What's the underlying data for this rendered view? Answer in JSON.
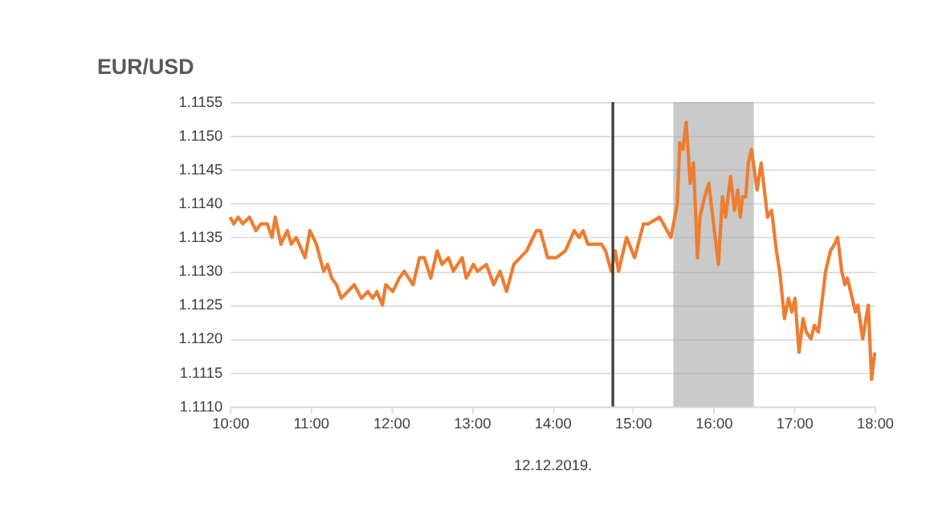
{
  "chart_data": {
    "type": "line",
    "title": "EUR/USD",
    "xlabel": "12.12.2019.",
    "x": [
      10.0,
      10.044,
      10.1,
      10.156,
      10.24,
      10.32,
      10.38,
      10.46,
      10.52,
      10.56,
      10.63,
      10.71,
      10.76,
      10.82,
      10.93,
      10.99,
      11.07,
      11.16,
      11.21,
      11.26,
      11.32,
      11.38,
      11.46,
      11.54,
      11.63,
      11.71,
      11.77,
      11.82,
      11.89,
      11.93,
      12.02,
      12.1,
      12.16,
      12.27,
      12.35,
      12.41,
      12.49,
      12.57,
      12.63,
      12.71,
      12.77,
      12.88,
      12.93,
      13.02,
      13.07,
      13.18,
      13.27,
      13.35,
      13.43,
      13.52,
      13.6,
      13.68,
      13.8,
      13.85,
      13.94,
      14.05,
      14.16,
      14.27,
      14.33,
      14.38,
      14.44,
      14.61,
      14.66,
      14.73,
      14.78,
      14.82,
      14.92,
      15.02,
      15.13,
      15.19,
      15.33,
      15.47,
      15.55,
      15.58,
      15.62,
      15.66,
      15.71,
      15.75,
      15.8,
      15.83,
      15.89,
      15.94,
      15.98,
      16.02,
      16.06,
      16.11,
      16.15,
      16.21,
      16.26,
      16.3,
      16.33,
      16.36,
      16.4,
      16.43,
      16.47,
      16.54,
      16.59,
      16.67,
      16.72,
      16.78,
      16.82,
      16.88,
      16.93,
      16.97,
      17.01,
      17.06,
      17.11,
      17.15,
      17.21,
      17.25,
      17.3,
      17.35,
      17.39,
      17.45,
      17.5,
      17.54,
      17.59,
      17.63,
      17.66,
      17.7,
      17.76,
      17.79,
      17.85,
      17.92,
      17.96,
      18.0
    ],
    "series": [
      {
        "color": "#ed7d31",
        "values": [
          1.1138,
          1.1137,
          1.1138,
          1.1137,
          1.1138,
          1.1136,
          1.1137,
          1.1137,
          1.1135,
          1.1138,
          1.1134,
          1.1136,
          1.1134,
          1.1135,
          1.1132,
          1.1136,
          1.1134,
          1.113,
          1.1131,
          1.1129,
          1.1128,
          1.1126,
          1.1127,
          1.1128,
          1.1126,
          1.1127,
          1.1126,
          1.1127,
          1.1125,
          1.1128,
          1.1127,
          1.1129,
          1.113,
          1.1128,
          1.1132,
          1.1132,
          1.1129,
          1.1133,
          1.1131,
          1.1132,
          1.113,
          1.1132,
          1.1129,
          1.1131,
          1.113,
          1.1131,
          1.1128,
          1.113,
          1.1127,
          1.1131,
          1.1132,
          1.1133,
          1.1136,
          1.1136,
          1.1132,
          1.1132,
          1.1133,
          1.1136,
          1.1135,
          1.1136,
          1.1134,
          1.1134,
          1.1133,
          1.113,
          1.1133,
          1.113,
          1.1135,
          1.1132,
          1.1137,
          1.1137,
          1.1138,
          1.1135,
          1.114,
          1.1149,
          1.1148,
          1.1152,
          1.1143,
          1.1146,
          1.1132,
          1.1138,
          1.1141,
          1.1143,
          1.1139,
          1.1135,
          1.1131,
          1.1141,
          1.1138,
          1.1144,
          1.1139,
          1.1142,
          1.1138,
          1.1141,
          1.1141,
          1.1146,
          1.1148,
          1.1142,
          1.1146,
          1.1138,
          1.1139,
          1.1133,
          1.113,
          1.1123,
          1.1126,
          1.1124,
          1.1126,
          1.1118,
          1.1123,
          1.1121,
          1.112,
          1.1122,
          1.1121,
          1.1126,
          1.113,
          1.1133,
          1.1134,
          1.1135,
          1.113,
          1.1128,
          1.1129,
          1.1127,
          1.1124,
          1.1125,
          1.112,
          1.1125,
          1.1114,
          1.1118
        ]
      }
    ],
    "xlim": [
      10,
      18
    ],
    "xticks": [
      {
        "value": 10,
        "label": "10:00"
      },
      {
        "value": 11,
        "label": "11:00"
      },
      {
        "value": 12,
        "label": "12:00"
      },
      {
        "value": 13,
        "label": "13:00"
      },
      {
        "value": 14,
        "label": "14:00"
      },
      {
        "value": 15,
        "label": "15:00"
      },
      {
        "value": 16,
        "label": "16:00"
      },
      {
        "value": 17,
        "label": "17:00"
      },
      {
        "value": 18,
        "label": "18:00"
      }
    ],
    "ylim": [
      1.111,
      1.1155
    ],
    "yticks": [
      {
        "value": 1.111,
        "label": "1.1110"
      },
      {
        "value": 1.1115,
        "label": "1.1115"
      },
      {
        "value": 1.112,
        "label": "1.1120"
      },
      {
        "value": 1.1125,
        "label": "1.1125"
      },
      {
        "value": 1.113,
        "label": "1.1130"
      },
      {
        "value": 1.1135,
        "label": "1.1135"
      },
      {
        "value": 1.114,
        "label": "1.1140"
      },
      {
        "value": 1.1145,
        "label": "1.1145"
      },
      {
        "value": 1.115,
        "label": "1.1150"
      },
      {
        "value": 1.1155,
        "label": "1.1155"
      }
    ],
    "ref_lines": [
      {
        "axis": "x",
        "value": 14.75,
        "color": "#404040"
      }
    ],
    "bands": [
      {
        "axis": "x",
        "from": 15.5,
        "to": 16.5,
        "color": "#a6a6a6"
      }
    ],
    "grid": "y",
    "marker": "none",
    "line_style": "solid"
  }
}
